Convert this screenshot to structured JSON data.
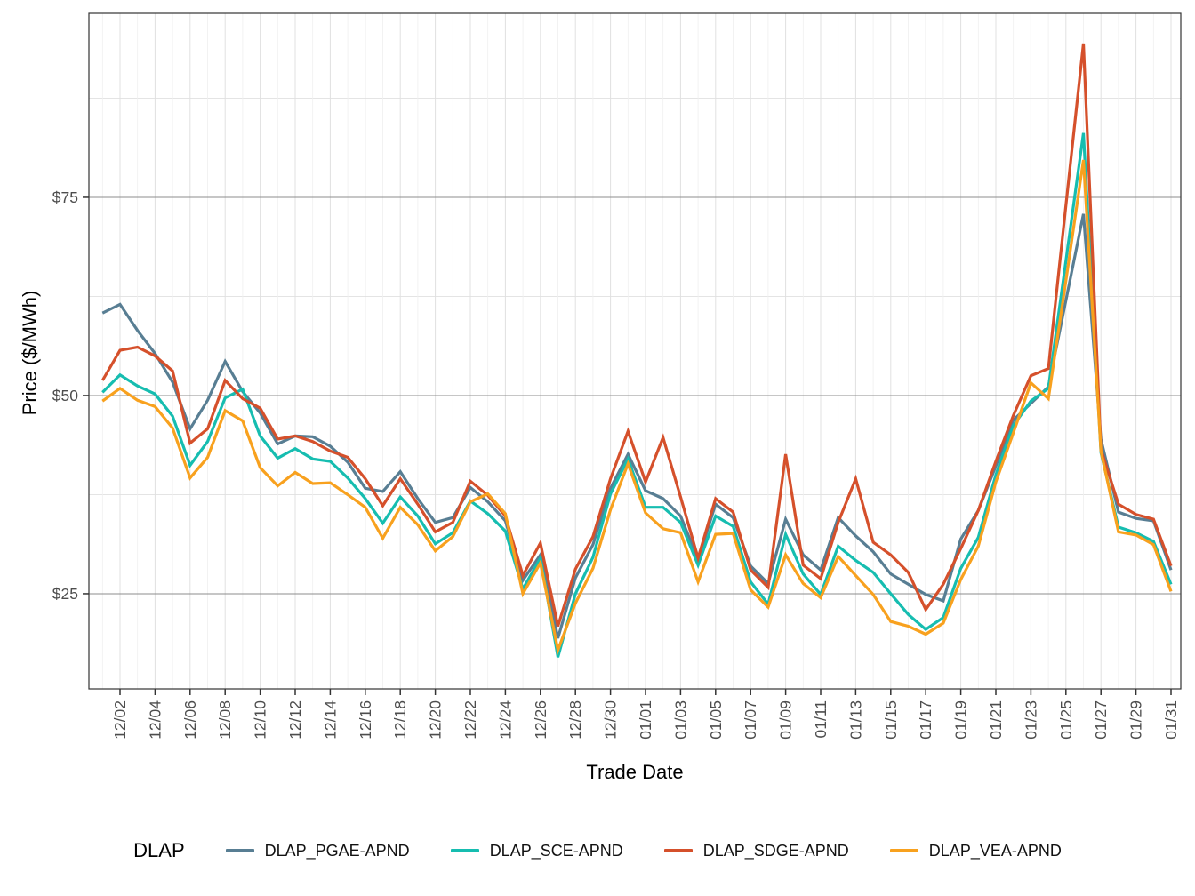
{
  "chart_data": {
    "type": "line",
    "title": "",
    "xlabel": "Trade Date",
    "ylabel": "Price ($/MWh)",
    "legend_title": "DLAP",
    "legend_position": "bottom",
    "grid": "on",
    "ylim": [
      13.0,
      98.2
    ],
    "y_ticks": [
      {
        "value": 25,
        "label": "$25"
      },
      {
        "value": 50,
        "label": "$50"
      },
      {
        "value": 75,
        "label": "$75"
      }
    ],
    "x_tick_labels": [
      "12/02",
      "12/04",
      "12/06",
      "12/08",
      "12/10",
      "12/12",
      "12/14",
      "12/16",
      "12/18",
      "12/20",
      "12/22",
      "12/24",
      "12/26",
      "12/28",
      "12/30",
      "01/01",
      "01/03",
      "01/05",
      "01/07",
      "01/09",
      "01/11",
      "01/13",
      "01/15",
      "01/17",
      "01/19",
      "01/21",
      "01/23",
      "01/25",
      "01/27",
      "01/29",
      "01/31"
    ],
    "x": [
      "12/01",
      "12/02",
      "12/03",
      "12/04",
      "12/05",
      "12/06",
      "12/07",
      "12/08",
      "12/09",
      "12/10",
      "12/11",
      "12/12",
      "12/13",
      "12/14",
      "12/15",
      "12/16",
      "12/17",
      "12/18",
      "12/19",
      "12/20",
      "12/21",
      "12/22",
      "12/23",
      "12/24",
      "12/25",
      "12/26",
      "12/27",
      "12/28",
      "12/29",
      "12/30",
      "12/31",
      "01/01",
      "01/02",
      "01/03",
      "01/04",
      "01/05",
      "01/06",
      "01/07",
      "01/08",
      "01/09",
      "01/10",
      "01/11",
      "01/12",
      "01/13",
      "01/14",
      "01/15",
      "01/16",
      "01/17",
      "01/18",
      "01/19",
      "01/20",
      "01/21",
      "01/22",
      "01/23",
      "01/24",
      "01/25",
      "01/26",
      "01/27",
      "01/28",
      "01/29",
      "01/30",
      "01/31"
    ],
    "series": [
      {
        "name": "DLAP_PGAE-APND",
        "color": "#587E93",
        "values": [
          60.4,
          61.5,
          58.2,
          55.3,
          51.7,
          45.8,
          49.4,
          54.3,
          50.5,
          47.8,
          43.9,
          44.9,
          44.8,
          43.6,
          41.6,
          38.3,
          37.9,
          40.4,
          37.0,
          34.0,
          34.6,
          38.4,
          36.6,
          34.2,
          26.7,
          29.9,
          19.4,
          27.0,
          31.2,
          38.3,
          42.6,
          38.0,
          37.0,
          34.8,
          29.3,
          36.3,
          34.6,
          28.5,
          26.3,
          34.4,
          29.9,
          28.0,
          34.6,
          32.3,
          30.3,
          27.5,
          26.2,
          24.9,
          24.1,
          31.9,
          35.5,
          41.1,
          46.9,
          49.0,
          51.1,
          62.0,
          72.9,
          44.5,
          35.3,
          34.5,
          34.2,
          28.0
        ]
      },
      {
        "name": "DLAP_SCE-APND",
        "color": "#16BDB0",
        "values": [
          50.4,
          52.6,
          51.2,
          50.2,
          47.4,
          41.2,
          44.2,
          49.7,
          50.8,
          44.9,
          42.1,
          43.3,
          42.0,
          41.7,
          39.6,
          37.0,
          33.9,
          37.2,
          34.8,
          31.3,
          32.7,
          36.7,
          35.1,
          32.9,
          25.6,
          29.5,
          17.0,
          25.0,
          29.6,
          37.6,
          42.0,
          35.9,
          35.9,
          34.0,
          28.6,
          34.8,
          33.5,
          26.5,
          23.7,
          32.5,
          27.5,
          24.9,
          31.0,
          29.2,
          27.7,
          25.0,
          22.4,
          20.5,
          22.0,
          28.2,
          32.1,
          40.0,
          46.2,
          49.3,
          50.9,
          67.0,
          83.1,
          42.8,
          33.4,
          32.7,
          31.6,
          26.2
        ]
      },
      {
        "name": "DLAP_SDGE-APND",
        "color": "#D5502B",
        "values": [
          51.9,
          55.7,
          56.1,
          55.0,
          53.1,
          44.0,
          45.8,
          51.9,
          49.6,
          48.4,
          44.5,
          44.9,
          44.2,
          43.0,
          42.2,
          39.5,
          36.1,
          39.5,
          36.3,
          32.8,
          34.0,
          39.2,
          37.4,
          34.8,
          27.3,
          31.4,
          20.9,
          28.1,
          32.2,
          39.5,
          45.5,
          39.1,
          44.7,
          37.2,
          29.5,
          37.0,
          35.3,
          28.0,
          25.8,
          42.6,
          28.6,
          26.9,
          34.0,
          39.5,
          31.5,
          29.9,
          27.7,
          23.0,
          26.2,
          30.7,
          35.5,
          41.7,
          47.5,
          52.5,
          53.4,
          74.0,
          94.4,
          43.2,
          36.3,
          35.0,
          34.4,
          28.5
        ]
      },
      {
        "name": "DLAP_VEA-APND",
        "color": "#F8A11E",
        "values": [
          49.3,
          50.9,
          49.4,
          48.6,
          45.9,
          39.6,
          42.2,
          48.1,
          46.8,
          40.9,
          38.6,
          40.3,
          38.9,
          39.0,
          37.5,
          35.9,
          32.0,
          35.9,
          33.7,
          30.4,
          32.2,
          36.6,
          37.6,
          35.1,
          25.0,
          28.9,
          17.9,
          23.8,
          28.2,
          35.6,
          41.4,
          35.2,
          33.2,
          32.7,
          26.5,
          32.5,
          32.6,
          25.5,
          23.3,
          29.9,
          26.3,
          24.5,
          29.7,
          27.3,
          24.9,
          21.5,
          20.9,
          19.9,
          21.3,
          26.8,
          31.0,
          39.1,
          45.3,
          51.6,
          49.6,
          64.5,
          79.7,
          43.0,
          32.8,
          32.4,
          31.2,
          25.3
        ]
      }
    ],
    "style": {
      "grid_major_y": "#8C8C8C",
      "grid_minor_y": "#E4E4E4",
      "grid_major_x": "#E0E0E0",
      "grid_minor_x": "#EFEFEF",
      "panel_border": "#333333",
      "tick_color": "#333333",
      "tick_label_color": "#4D4D4D"
    }
  }
}
